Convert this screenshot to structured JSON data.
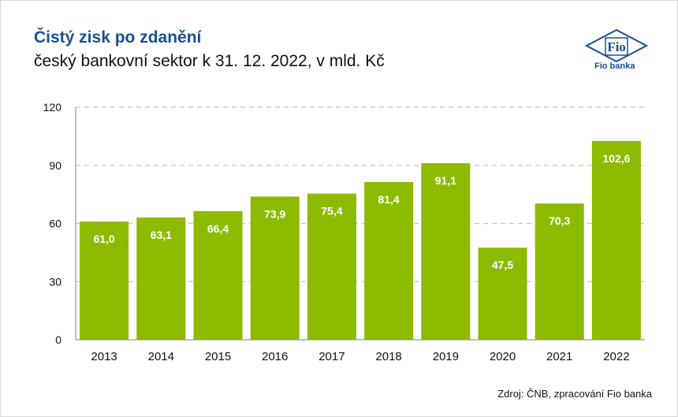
{
  "header": {
    "title": "Čistý zisk po zdanění",
    "subtitle": "český bankovní sektor k 31. 12. 2022, v mld. Kč"
  },
  "logo": {
    "icon": "fio-logo-icon",
    "mark_text": "Fio",
    "caption": "Fio banka",
    "color": "#1b4f91"
  },
  "footer": {
    "source": "Zdroj: ČNB, zpracování Fio banka"
  },
  "colors": {
    "bar": "#8cbb00",
    "title": "#1b4f91",
    "grid": "#c8c8c8"
  },
  "chart_data": {
    "type": "bar",
    "title": "Čistý zisk po zdanění",
    "subtitle": "český bankovní sektor k 31. 12. 2022, v mld. Kč",
    "categories": [
      "2013",
      "2014",
      "2015",
      "2016",
      "2017",
      "2018",
      "2019",
      "2020",
      "2021",
      "2022"
    ],
    "values": [
      61.0,
      63.1,
      66.4,
      73.9,
      75.4,
      81.4,
      91.1,
      47.5,
      70.3,
      102.6
    ],
    "value_labels": [
      "61,0",
      "63,1",
      "66,4",
      "73,9",
      "75,4",
      "81,4",
      "91,1",
      "47,5",
      "70,3",
      "102,6"
    ],
    "y_ticks": [
      0,
      30,
      60,
      90,
      120
    ],
    "ylim": [
      0,
      120
    ],
    "xlabel": "",
    "ylabel": "",
    "grid": "horizontal dashed",
    "legend": "none"
  }
}
